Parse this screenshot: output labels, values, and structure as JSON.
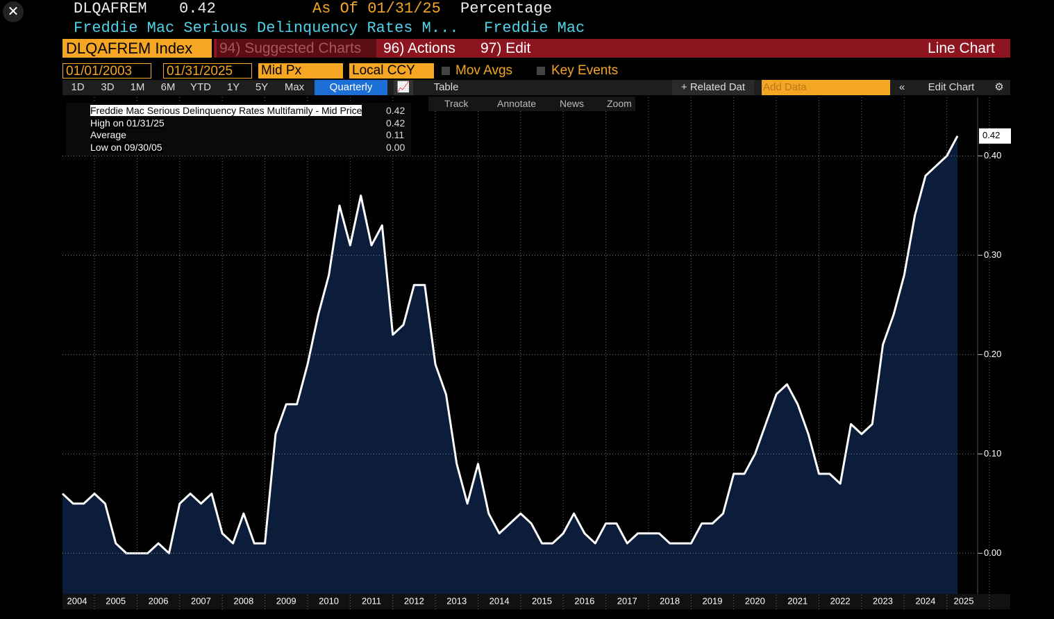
{
  "header": {
    "ticker": "DLQAFREM",
    "last": "0.42",
    "as_of": "As Of 01/31/25",
    "unit": "Percentage",
    "description": "Freddie Mac Serious Delinquency Rates M...",
    "source": "Freddie Mac"
  },
  "toolbar": {
    "security": "DLQAFREM Index",
    "menus": [
      "94) Suggested Charts",
      "96) Actions",
      "97) Edit"
    ],
    "view": "Line Chart"
  },
  "controls": {
    "start_date": "01/01/2003",
    "end_date": "01/31/2025",
    "field": "Mid Px",
    "currency": "Local CCY",
    "mov_avgs": "Mov Avgs",
    "key_events": "Key Events"
  },
  "periods": {
    "buttons": [
      "1D",
      "3D",
      "1M",
      "6M",
      "YTD",
      "1Y",
      "5Y",
      "Max"
    ],
    "frequency": "Quarterly",
    "table": "Table",
    "related": "+ Related Dat",
    "add_data": "Add Data",
    "edit_chart": "Edit Chart"
  },
  "tools": [
    "Track",
    "Annotate",
    "News",
    "Zoom"
  ],
  "legend": {
    "rows": [
      [
        "Freddie Mac Serious Delinquency Rates Multifamily - Mid Price",
        "0.42"
      ],
      [
        "High on 01/31/25",
        "0.42"
      ],
      [
        "Average",
        "0.11"
      ],
      [
        "Low on 09/30/05",
        "0.00"
      ]
    ]
  },
  "chart_data": {
    "type": "area",
    "line_color": "#ffffff",
    "fill_color": "#0b1d3a",
    "x_labels": [
      "2004",
      "2005",
      "2006",
      "2007",
      "2008",
      "2009",
      "2010",
      "2011",
      "2012",
      "2013",
      "2014",
      "2015",
      "2016",
      "2017",
      "2018",
      "2019",
      "2020",
      "2021",
      "2022",
      "2023",
      "2024",
      "2025"
    ],
    "values": [
      0.06,
      0.05,
      0.05,
      0.06,
      0.05,
      0.01,
      0,
      0,
      0,
      0.01,
      0,
      0.05,
      0.06,
      0.05,
      0.06,
      0.02,
      0.01,
      0.04,
      0.01,
      0.01,
      0.12,
      0.15,
      0.15,
      0.19,
      0.24,
      0.28,
      0.35,
      0.31,
      0.36,
      0.31,
      0.33,
      0.22,
      0.23,
      0.27,
      0.27,
      0.19,
      0.16,
      0.09,
      0.05,
      0.09,
      0.04,
      0.02,
      0.03,
      0.04,
      0.03,
      0.01,
      0.01,
      0.02,
      0.04,
      0.02,
      0.01,
      0.03,
      0.03,
      0.01,
      0.02,
      0.02,
      0.02,
      0.01,
      0.01,
      0.01,
      0.03,
      0.03,
      0.04,
      0.08,
      0.08,
      0.1,
      0.13,
      0.16,
      0.17,
      0.15,
      0.12,
      0.08,
      0.08,
      0.07,
      0.13,
      0.12,
      0.13,
      0.21,
      0.24,
      0.28,
      0.34,
      0.38,
      0.39,
      0.4,
      0.42
    ],
    "last_label": "0.42",
    "ylim": [
      -0.041,
      0.459
    ],
    "yticks": [
      {
        "value": 0,
        "label": "0.00"
      },
      {
        "value": 0.1,
        "label": "0.10"
      },
      {
        "value": 0.2,
        "label": "0.20"
      },
      {
        "value": 0.3,
        "label": "0.30"
      },
      {
        "value": 0.4,
        "label": "0.40"
      }
    ],
    "grid": true
  }
}
